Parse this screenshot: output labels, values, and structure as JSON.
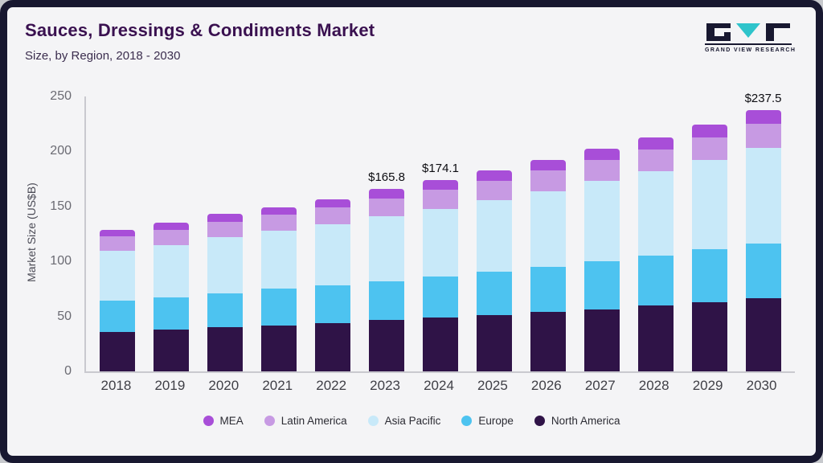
{
  "header": {
    "title": "Sauces, Dressings & Condiments Market",
    "subtitle": "Size, by Region, 2018 - 2030"
  },
  "logo": {
    "text": "GRAND VIEW RESEARCH",
    "accent_color": "#2fc4cb",
    "dark_color": "#181830"
  },
  "chart_data": {
    "type": "bar",
    "stacked": true,
    "title": "Sauces, Dressings & Condiments Market Size, by Region, 2018 - 2030",
    "xlabel": "",
    "ylabel": "Market Size (US$B)",
    "ylim": [
      0,
      250
    ],
    "yticks": [
      0,
      50,
      100,
      150,
      200,
      250
    ],
    "grid": false,
    "legend_position": "bottom",
    "categories": [
      "2018",
      "2019",
      "2020",
      "2021",
      "2022",
      "2023",
      "2024",
      "2025",
      "2026",
      "2027",
      "2028",
      "2029",
      "2030"
    ],
    "series": [
      {
        "name": "North America",
        "color": "#2f1347",
        "values": [
          36,
          38,
          40,
          42,
          44,
          46.5,
          49,
          51.5,
          54,
          56.5,
          60,
          63,
          66.5
        ]
      },
      {
        "name": "Europe",
        "color": "#4dc3f0",
        "values": [
          28,
          29,
          31,
          33,
          34,
          35.5,
          37,
          39,
          41,
          43.5,
          45,
          48,
          50
        ]
      },
      {
        "name": "Asia Pacific",
        "color": "#c8e9f9",
        "values": [
          46,
          48,
          51,
          53,
          56,
          59,
          62,
          65,
          69,
          73,
          77,
          81,
          86.5
        ]
      },
      {
        "name": "Latin America",
        "color": "#c79ae3",
        "values": [
          13,
          13.5,
          14,
          14.5,
          15,
          16,
          17,
          18,
          18.5,
          19,
          20,
          21,
          22.5
        ]
      },
      {
        "name": "MEA",
        "color": "#a84ed8",
        "values": [
          6,
          6.5,
          7,
          7,
          7.5,
          8.8,
          9.1,
          9.5,
          10,
          10.5,
          11,
          11.5,
          12
        ]
      }
    ],
    "bar_labels": [
      "",
      "",
      "",
      "",
      "",
      "$165.8",
      "$174.1",
      "",
      "",
      "",
      "",
      "",
      "$237.5"
    ],
    "totals": [
      129,
      135,
      143,
      149.5,
      156.5,
      165.8,
      174.1,
      183,
      192.5,
      202.5,
      213,
      224.5,
      237.5
    ],
    "legend": [
      "MEA",
      "Latin America",
      "Asia Pacific",
      "Europe",
      "North America"
    ]
  }
}
